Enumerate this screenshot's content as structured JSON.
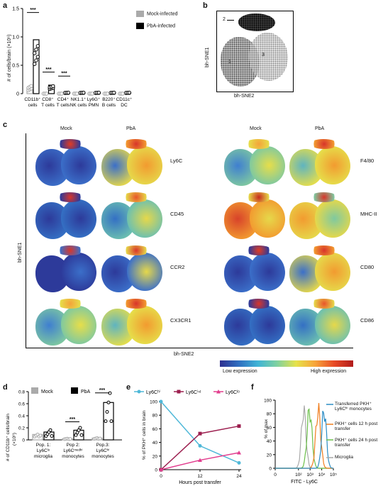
{
  "panel_labels": {
    "a": "a",
    "b": "b",
    "c": "c",
    "d": "d",
    "e": "e",
    "f": "f"
  },
  "panel_a": {
    "ylabel": "# of cells/brain (×10⁶)",
    "yticks": [
      "0",
      "0.5",
      "1.0",
      "1.5"
    ],
    "legend": [
      "Mock-infected",
      "PbA-infected"
    ],
    "categories": [
      {
        "line1": "CD11b⁺",
        "line2": "cells"
      },
      {
        "line1": "CD8⁺",
        "line2": "T cells"
      },
      {
        "line1": "CD4⁺",
        "line2": "T cells"
      },
      {
        "line1": "NK1.1⁺",
        "line2": "NK cells"
      },
      {
        "line1": "Ly6G⁺",
        "line2": "PMN"
      },
      {
        "line1": "B220⁺",
        "line2": "B cells"
      },
      {
        "line1": "CD11c⁺",
        "line2": "DC"
      }
    ],
    "sig": [
      "***",
      "***",
      "***"
    ]
  },
  "panel_b": {
    "ylabel": "bh-SNE1",
    "xlabel": "bh-SNE2",
    "clusters": [
      "1",
      "2",
      "3"
    ]
  },
  "panel_c": {
    "ylabel": "bh-SNE1",
    "xlabel": "bh-SNE2",
    "col_left": [
      "Mock",
      "PbA"
    ],
    "col_right": [
      "Mock",
      "PbA"
    ],
    "markers_left": [
      "Ly6C",
      "CD45",
      "CCR2",
      "CX3CR1"
    ],
    "markers_right": [
      "F4/80",
      "MHC-II",
      "CD80",
      "CD86"
    ],
    "scale_low": "Low expression",
    "scale_high": "High expression"
  },
  "panel_d": {
    "ylabel_line1": "# of CD11b⁺ cells/brain",
    "ylabel_line2": "(×10⁶)",
    "yticks": [
      "0",
      "0.2",
      "0.4",
      "0.6",
      "0.8"
    ],
    "legend": [
      "Mock",
      "PbA"
    ],
    "groups": [
      {
        "l1": "Pop. 1:",
        "l2": "Ly6Cˡᵒ",
        "l3": "microglia"
      },
      {
        "l1": "Pop 2:",
        "l2": "Ly6Cᵐᵉᵈʰⁱ",
        "l3": "monocytes"
      },
      {
        "l1": "Pop.3:",
        "l2": "Ly6Cʰⁱ",
        "l3": "monocytes"
      }
    ],
    "sig": [
      "***",
      "***"
    ]
  },
  "panel_e": {
    "ylabel": "% of PKH⁺ cells in brain",
    "xlabel": "Hours post transfer",
    "xticks": [
      "0",
      "12",
      "24"
    ],
    "yticks": [
      "0",
      "20",
      "40",
      "60",
      "80",
      "100"
    ],
    "legend": [
      "Ly6Cʰⁱ",
      "Ly6Cⁱⁿᵗ",
      "Ly6Cˡᵒ"
    ]
  },
  "panel_f": {
    "ylabel": "% of max",
    "xlabel": "FITC - Ly6C",
    "yticks": [
      "0",
      "20",
      "40",
      "60",
      "80",
      "100"
    ],
    "xticks": [
      "0",
      "10²",
      "10³",
      "10⁴",
      "10⁵"
    ],
    "legend": [
      "Transferred PKH⁺ Ly6Cʰⁱ monocytes",
      "PKH⁺ cells 12 h post transfer",
      "PKH⁺ cells 24 h post transfer",
      "Microglia"
    ]
  },
  "colors": {
    "mock": "#aaaaaa",
    "pba": "#000000",
    "hi": "#4fb8d8",
    "int": "#9c1f4f",
    "lo": "#e23d8e",
    "f_blue": "#2b8cc4",
    "f_orange": "#f07d1e",
    "f_green": "#6cc04a",
    "f_grey": "#a9a9a9"
  },
  "chart_data": [
    {
      "type": "bar",
      "title": "",
      "ylabel": "# of cells/brain (×10⁶)",
      "ylim": [
        0,
        1.5
      ],
      "categories": [
        "CD11b⁺ cells",
        "CD8⁺ T cells",
        "CD4⁺ T cells",
        "NK1.1⁺ NK cells",
        "Ly6G⁺ PMN",
        "B220⁺ B cells",
        "CD11c⁺ DC"
      ],
      "series": [
        {
          "name": "Mock-infected",
          "values": [
            0.1,
            0.0,
            0.0,
            0.0,
            0.0,
            0.0,
            0.0
          ]
        },
        {
          "name": "PbA-infected",
          "values": [
            0.95,
            0.15,
            0.02,
            0.02,
            0.02,
            0.02,
            0.02
          ]
        }
      ]
    },
    {
      "type": "bar",
      "ylabel": "# of CD11b⁺ cells/brain (×10⁶)",
      "ylim": [
        0,
        0.8
      ],
      "categories": [
        "Pop. 1: Ly6Cˡᵒ microglia",
        "Pop 2: Ly6Cᵐᵉᵈʰⁱ monocytes",
        "Pop.3: Ly6Cʰⁱ monocytes"
      ],
      "series": [
        {
          "name": "Mock",
          "values": [
            0.09,
            0.02,
            0.03
          ]
        },
        {
          "name": "PbA",
          "values": [
            0.13,
            0.16,
            0.62
          ]
        }
      ]
    },
    {
      "type": "line",
      "xlabel": "Hours post transfer",
      "ylabel": "% of PKH⁺ cells in brain",
      "x": [
        0,
        12,
        24
      ],
      "ylim": [
        0,
        100
      ],
      "series": [
        {
          "name": "Ly6Cʰⁱ",
          "values": [
            100,
            35,
            10
          ]
        },
        {
          "name": "Ly6Cⁱⁿᵗ",
          "values": [
            0,
            53,
            64
          ]
        },
        {
          "name": "Ly6Cˡᵒ",
          "values": [
            0,
            14,
            25
          ]
        }
      ]
    }
  ]
}
